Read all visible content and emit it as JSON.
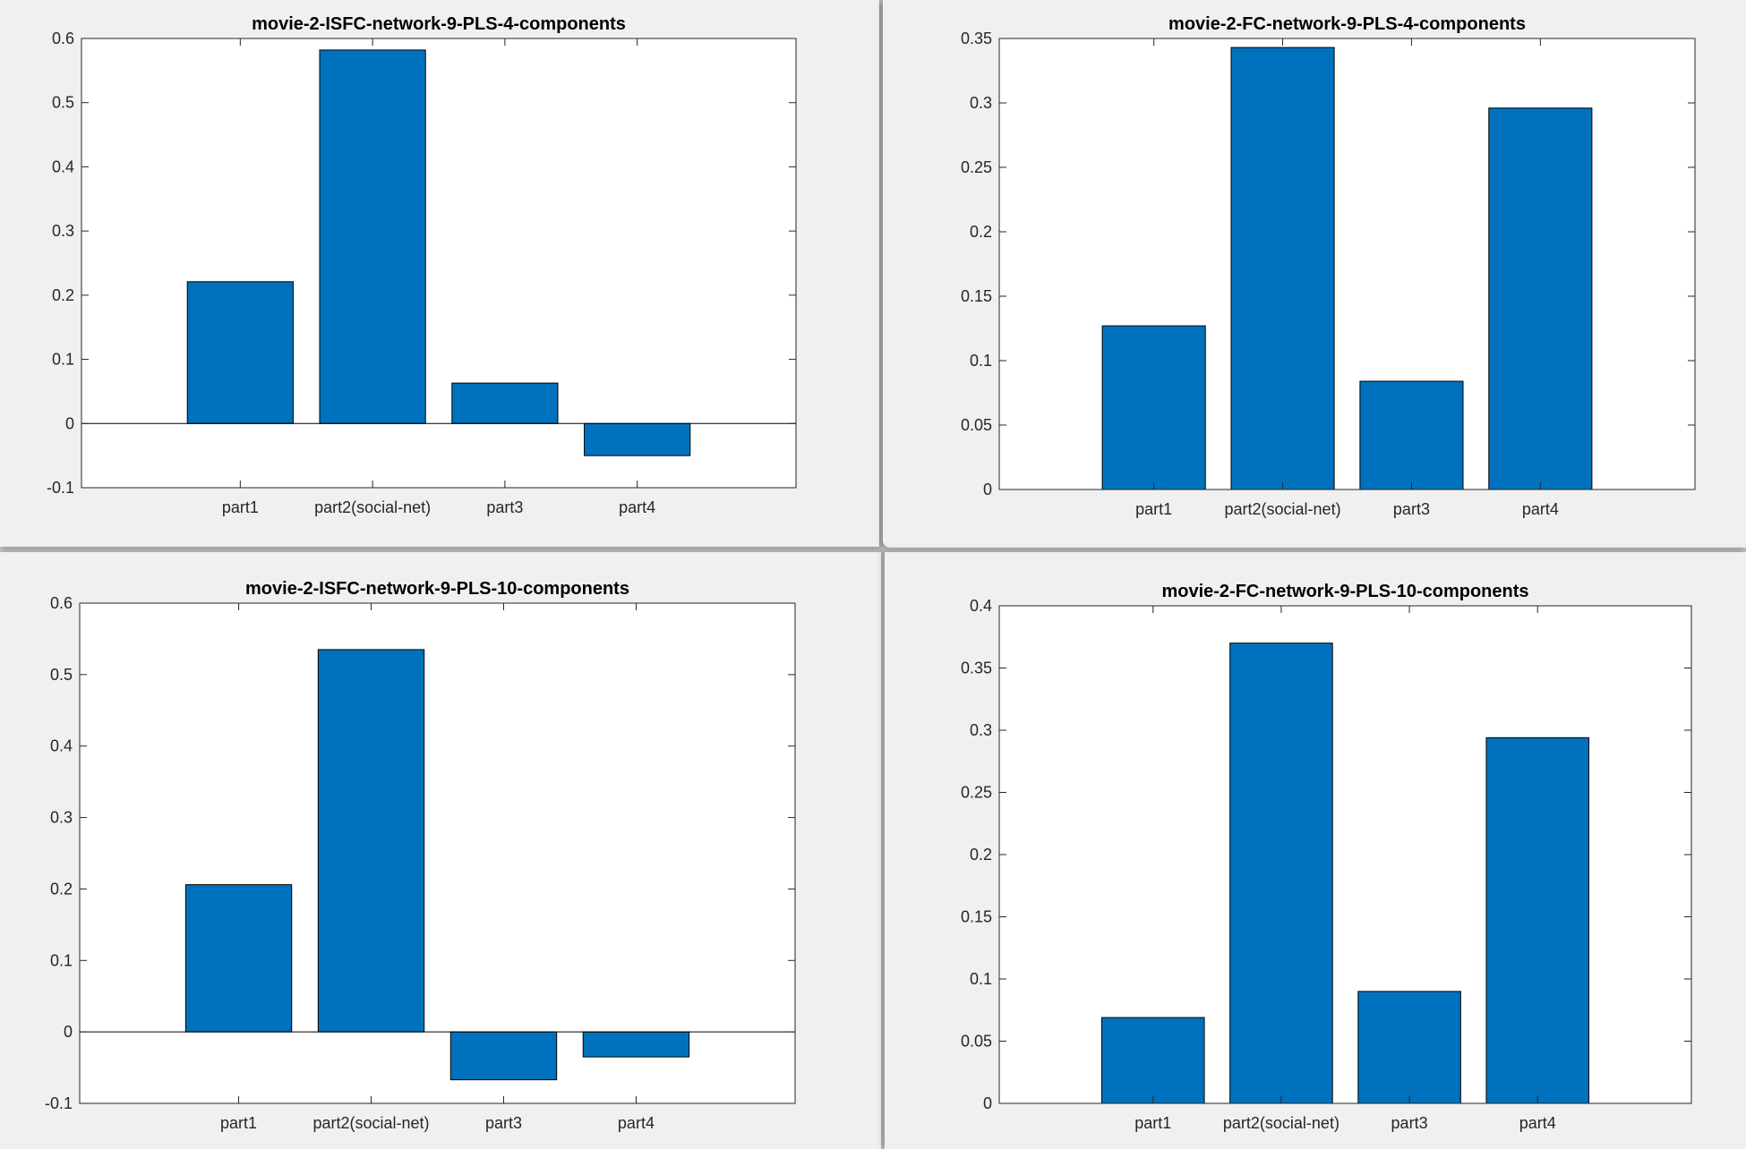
{
  "colors": {
    "bar": "#0072BD",
    "edge": "#000000",
    "background": "#f0f0f0",
    "axes": "#ffffff",
    "text": "#262626"
  },
  "chart_data": [
    {
      "type": "bar",
      "title": "movie-2-ISFC-network-9-PLS-4-components",
      "categories": [
        "part1",
        "part2(social-net)",
        "part3",
        "part4"
      ],
      "values": [
        0.221,
        0.582,
        0.063,
        -0.05
      ],
      "ylim": [
        -0.1,
        0.6
      ],
      "yticks": [
        -0.1,
        0,
        0.1,
        0.2,
        0.3,
        0.4,
        0.5,
        0.6
      ],
      "ytick_labels": [
        "-0.1",
        "0",
        "0.1",
        "0.2",
        "0.3",
        "0.4",
        "0.5",
        "0.6"
      ],
      "xlabel": "",
      "ylabel": "",
      "grid": false
    },
    {
      "type": "bar",
      "title": "movie-2-FC-network-9-PLS-4-components",
      "categories": [
        "part1",
        "part2(social-net)",
        "part3",
        "part4"
      ],
      "values": [
        0.127,
        0.343,
        0.084,
        0.296
      ],
      "ylim": [
        0,
        0.35
      ],
      "yticks": [
        0,
        0.05,
        0.1,
        0.15,
        0.2,
        0.25,
        0.3,
        0.35
      ],
      "ytick_labels": [
        "0",
        "0.05",
        "0.1",
        "0.15",
        "0.2",
        "0.25",
        "0.3",
        "0.35"
      ],
      "xlabel": "",
      "ylabel": "",
      "grid": false
    },
    {
      "type": "bar",
      "title": "movie-2-ISFC-network-9-PLS-10-components",
      "categories": [
        "part1",
        "part2(social-net)",
        "part3",
        "part4"
      ],
      "values": [
        0.206,
        0.535,
        -0.067,
        -0.035
      ],
      "ylim": [
        -0.1,
        0.6
      ],
      "yticks": [
        -0.1,
        0,
        0.1,
        0.2,
        0.3,
        0.4,
        0.5,
        0.6
      ],
      "ytick_labels": [
        "-0.1",
        "0",
        "0.1",
        "0.2",
        "0.3",
        "0.4",
        "0.5",
        "0.6"
      ],
      "xlabel": "",
      "ylabel": "",
      "grid": false
    },
    {
      "type": "bar",
      "title": "movie-2-FC-network-9-PLS-10-components",
      "categories": [
        "part1",
        "part2(social-net)",
        "part3",
        "part4"
      ],
      "values": [
        0.069,
        0.37,
        0.09,
        0.294
      ],
      "ylim": [
        0,
        0.4
      ],
      "yticks": [
        0,
        0.05,
        0.1,
        0.15,
        0.2,
        0.25,
        0.3,
        0.35,
        0.4
      ],
      "ytick_labels": [
        "0",
        "0.05",
        "0.1",
        "0.15",
        "0.2",
        "0.25",
        "0.3",
        "0.35",
        "0.4"
      ],
      "xlabel": "",
      "ylabel": "",
      "grid": false
    }
  ]
}
